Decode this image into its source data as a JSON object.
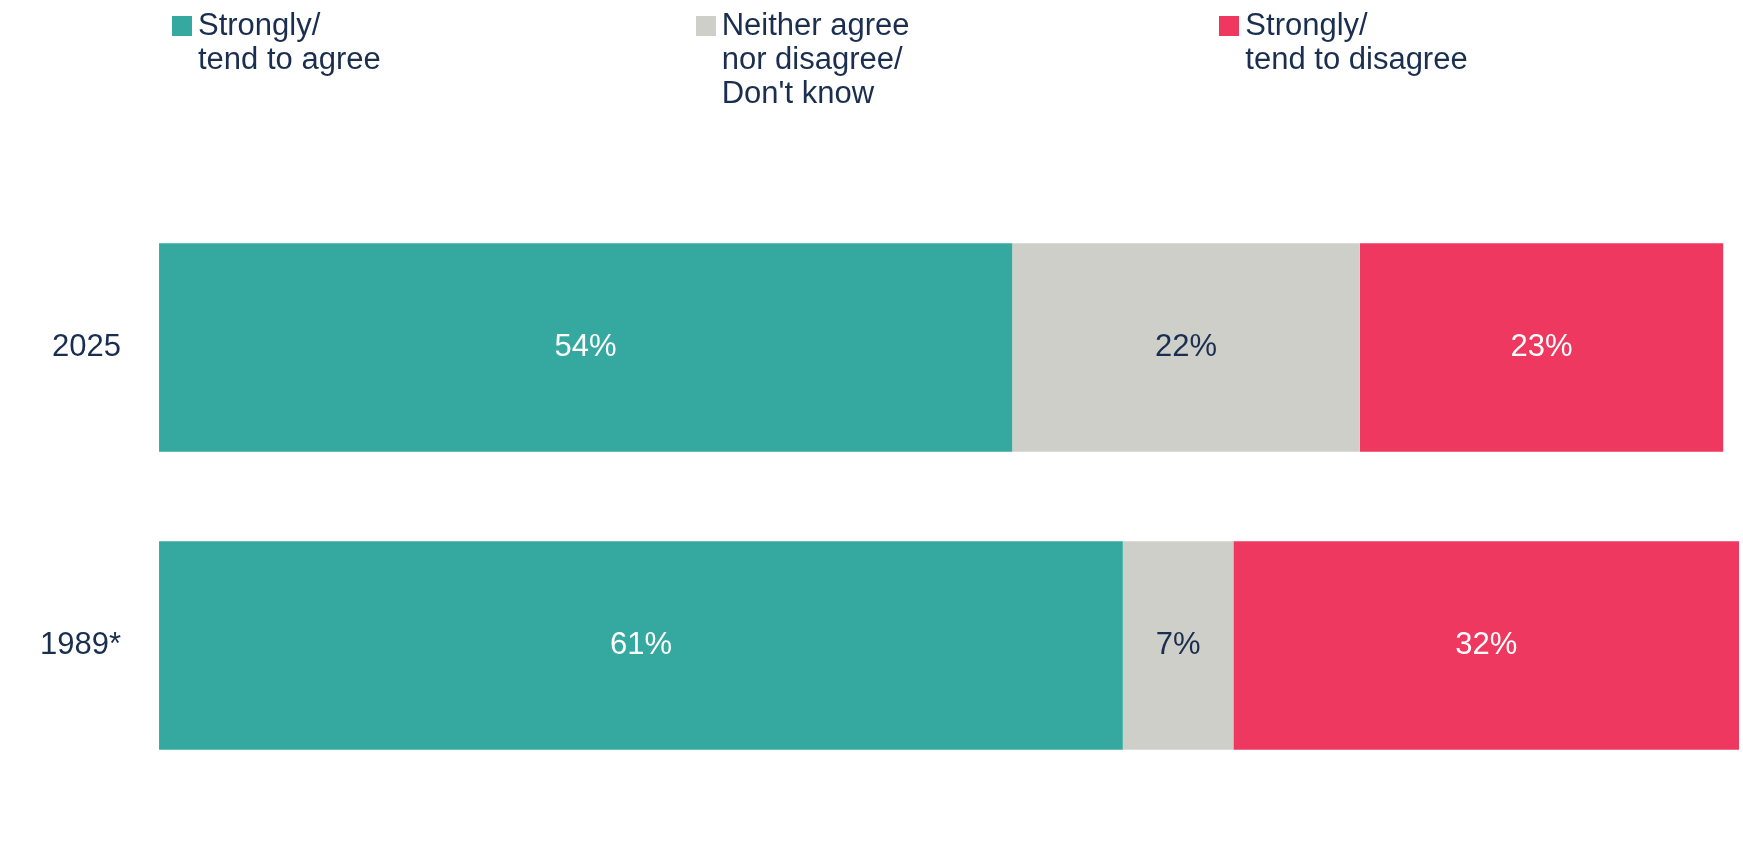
{
  "chart_data": {
    "type": "bar",
    "orientation": "horizontal",
    "stacked": true,
    "categories": [
      "2025",
      "1989*"
    ],
    "series": [
      {
        "name": "Strongly/\ntend to agree",
        "color": "#35a9a0",
        "values": [
          54,
          61
        ],
        "value_labels": [
          "54%",
          "61%"
        ]
      },
      {
        "name": "Neither agree\nnor disagree/\nDon't know",
        "color": "#cfcfca",
        "values": [
          22,
          7
        ],
        "value_labels": [
          "22%",
          "7%"
        ]
      },
      {
        "name": "Strongly/\ntend to disagree",
        "color": "#ee3860",
        "values": [
          23,
          32
        ],
        "value_labels": [
          "23%",
          "32%"
        ]
      }
    ],
    "xlim": [
      0,
      100
    ],
    "tick_labels": "y",
    "legend": "top"
  }
}
